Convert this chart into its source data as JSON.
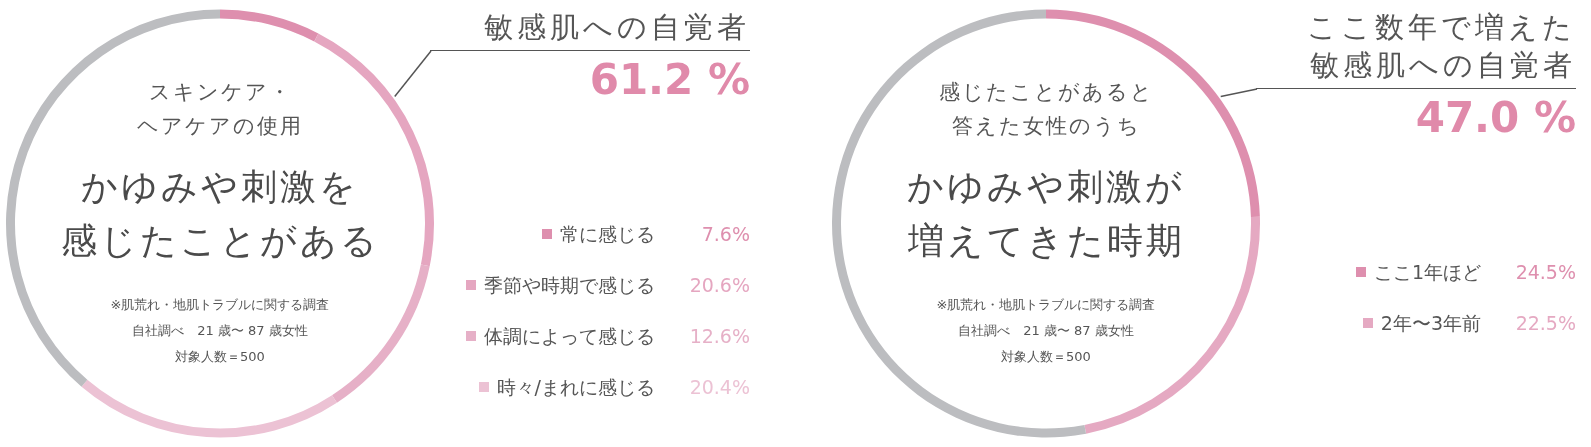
{
  "chart_data": [
    {
      "type": "donut",
      "subtitle": "スキンケア・ヘアケアの使用",
      "title": "かゆみや刺激を感じたことがある",
      "categories": [
        "常に感じる",
        "季節や時期で感じる",
        "体調によって感じる",
        "時々/まれに感じる",
        null
      ],
      "values": [
        7.6,
        20.6,
        12.6,
        20.4,
        38.8
      ],
      "value_labels": [
        "7.6%",
        "20.6%",
        "12.6%",
        "20.4%",
        null
      ],
      "colors": [
        "#de8fae",
        "#e5a6c0",
        "#e6b0c7",
        "#ecc2d4",
        "#bcbdc0"
      ],
      "legend": "right",
      "annotations": [
        "敏感肌への自覚者",
        "61.2 %",
        "※肌荒れ・地肌トラブルに関する調査",
        "自社調べ　21 歳〜 87 歳女性",
        "対象人数＝500"
      ]
    },
    {
      "type": "donut",
      "subtitle": "感じたことがあると答えた女性のうち",
      "title": "かゆみや刺激が増えてきた時期",
      "categories": [
        "ここ1年ほど",
        "2年〜3年前",
        null
      ],
      "values": [
        24.5,
        22.5,
        53.0
      ],
      "value_labels": [
        "24.5%",
        "22.5%",
        null
      ],
      "colors": [
        "#de8fae",
        "#e5a9c2",
        "#bcbdc0"
      ],
      "legend": "right",
      "annotations": [
        "ここ数年で増えた敏感肌への自覚者",
        "47.0 %",
        "※肌荒れ・地肌トラブルに関する調査",
        "自社調べ　21 歳〜 87 歳女性",
        "対象人数＝500"
      ]
    }
  ]
}
